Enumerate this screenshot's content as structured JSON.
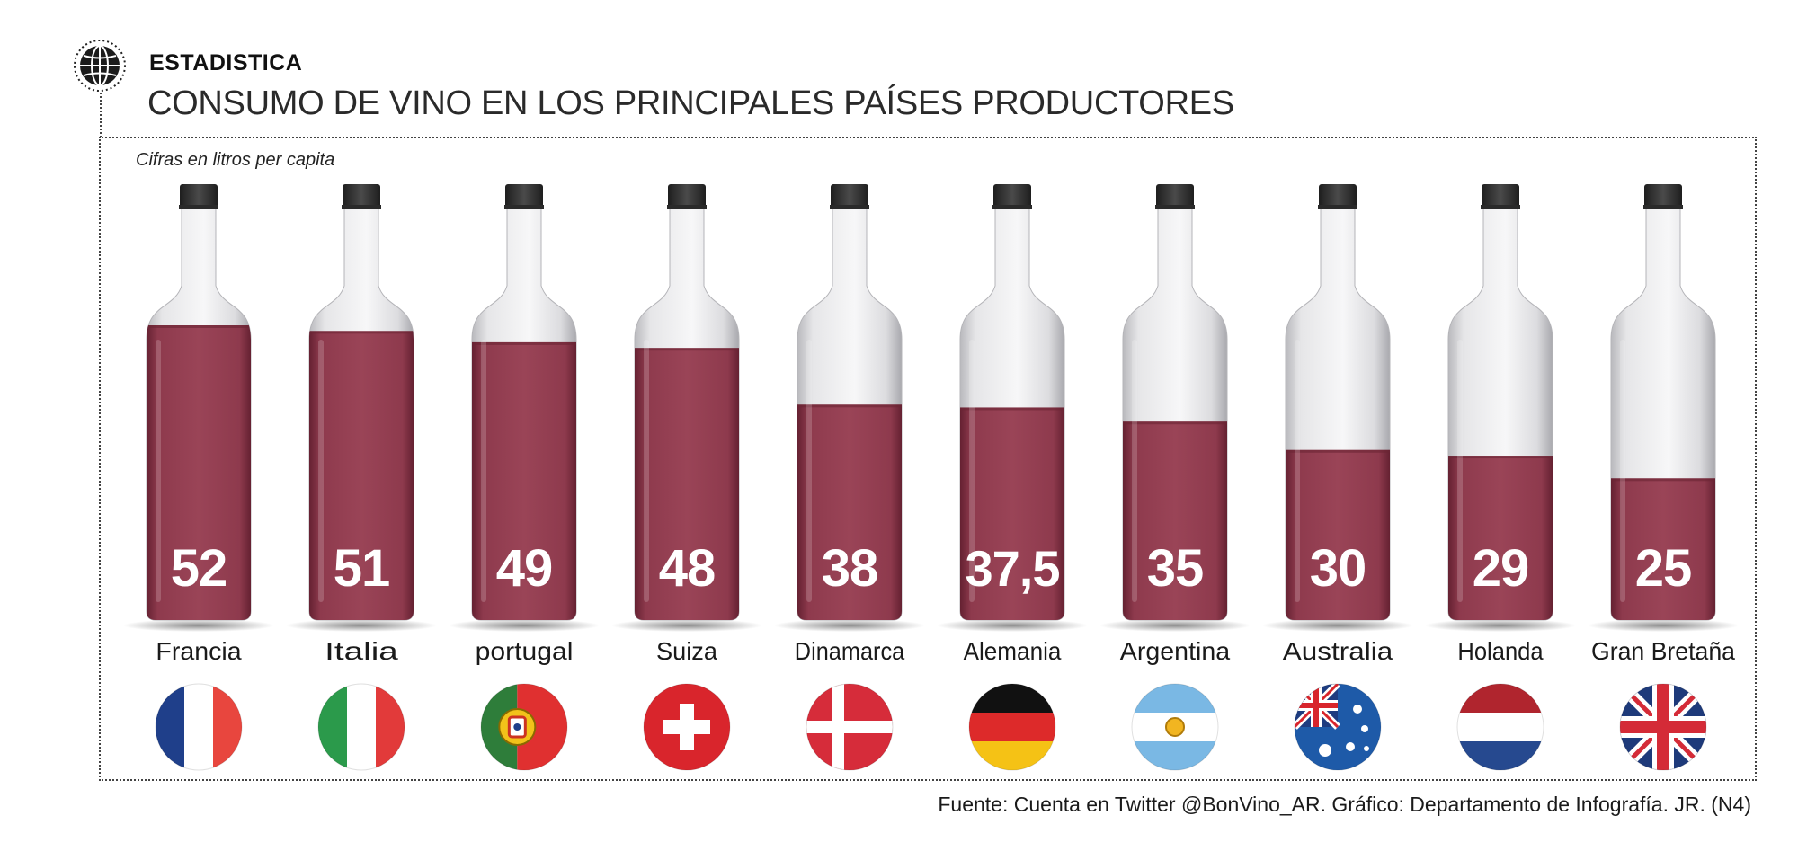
{
  "header": {
    "kicker": "ESTADISTICA",
    "title": "CONSUMO DE VINO EN LOS PRINCIPALES PAÍSES PRODUCTORES",
    "icon": "globe-icon"
  },
  "subtitle": "Cifras en litros per capita",
  "source": "Fuente: Cuenta en Twitter @BonVino_AR. Gráfico: Departamento de Infografía. JR. (N4)",
  "colors": {
    "wine": "#8e3a4d",
    "wine_dark": "#5e1d2d",
    "glass": "#e6e6e8",
    "cap": "#3a3a3a"
  },
  "chart_data": {
    "type": "bar",
    "categories": [
      "Francia",
      "Italia",
      "portugal",
      "Suiza",
      "Dinamarca",
      "Alemania",
      "Argentina",
      "Australia",
      "Holanda",
      "Gran Bretaña"
    ],
    "values": [
      52,
      51,
      49,
      48,
      38,
      37.5,
      35,
      30,
      29,
      25
    ],
    "value_labels": [
      "52",
      "51",
      "49",
      "48",
      "38",
      "37,5",
      "35",
      "30",
      "29",
      "25"
    ],
    "flags": [
      "france-flag-icon",
      "italy-flag-icon",
      "portugal-flag-icon",
      "switzerland-flag-icon",
      "denmark-flag-icon",
      "germany-flag-icon",
      "argentina-flag-icon",
      "australia-flag-icon",
      "netherlands-flag-icon",
      "united-kingdom-flag-icon"
    ],
    "subtitle": "Cifras en litros per capita",
    "mark": "wine-bottle-fill"
  }
}
